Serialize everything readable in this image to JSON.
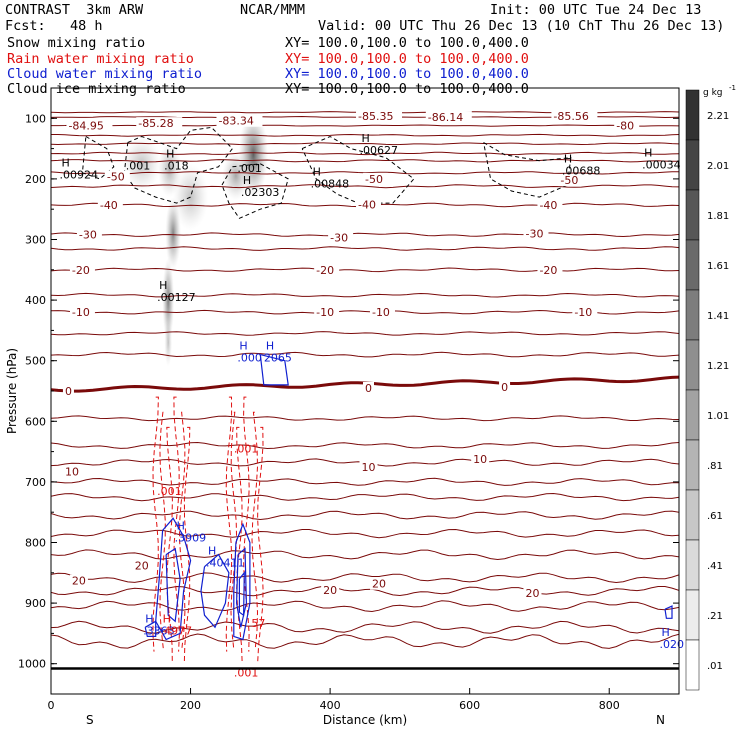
{
  "header": {
    "model": "CONTRAST  3km ARW",
    "forecast": "Fcst:   48 h",
    "center": "NCAR/MMM",
    "init": "Init: 00 UTC Tue 24 Dec 13",
    "valid": "Valid: 00 UTC Thu 26 Dec 13 (10 ChT Thu 26 Dec 13)",
    "fields": [
      {
        "name": "Snow mixing ratio",
        "xy": "XY= 100.0,100.0 to 100.0,400.0",
        "color": "#000000"
      },
      {
        "name": "Rain water mixing ratio",
        "xy": "XY= 100.0,100.0 to 100.0,400.0",
        "color": "#ee1111"
      },
      {
        "name": "Cloud water mixing ratio",
        "xy": "XY= 100.0,100.0 to 100.0,400.0",
        "color": "#1111cc"
      },
      {
        "name": "Cloud ice mixing ratio",
        "xy": "XY= 100.0,100.0 to 100.0,400.0",
        "color": "#000000"
      }
    ]
  },
  "colors": {
    "temp": "#7a0a0a",
    "rain": "#e01010",
    "cloud": "#1020d0",
    "ice": "#000000"
  },
  "chart_data": {
    "type": "cross-section",
    "xlabel": "Distance (km)",
    "ylabel": "Pressure (hPa)",
    "xlim": [
      0,
      900
    ],
    "ylim": [
      1050,
      50
    ],
    "xticks": [
      0,
      200,
      400,
      600,
      800
    ],
    "yticks": [
      100,
      200,
      300,
      400,
      500,
      600,
      700,
      800,
      900,
      1000
    ],
    "end_left": "S",
    "end_right": "N",
    "colorbar": {
      "unit": "g kg",
      "unit_exp": "-1",
      "labels": [
        "2.21",
        "2.01",
        "1.81",
        "1.61",
        "1.41",
        "1.21",
        "1.01",
        ".81",
        ".61",
        ".41",
        ".21",
        ".01"
      ]
    },
    "temp_labels": [
      {
        "x": 25,
        "p": 112,
        "t": "-84.95"
      },
      {
        "x": 125,
        "p": 108,
        "t": "-85.28"
      },
      {
        "x": 240,
        "p": 104,
        "t": "-83.34"
      },
      {
        "x": 440,
        "p": 96,
        "t": "-85.35"
      },
      {
        "x": 540,
        "p": 98,
        "t": "-86.14"
      },
      {
        "x": 720,
        "p": 96,
        "t": "-85.56"
      },
      {
        "x": 810,
        "p": 112,
        "t": "-80"
      },
      {
        "x": 80,
        "p": 196,
        "t": "-50"
      },
      {
        "x": 450,
        "p": 200,
        "t": "-50"
      },
      {
        "x": 730,
        "p": 202,
        "t": "-50"
      },
      {
        "x": 70,
        "p": 243,
        "t": "-40"
      },
      {
        "x": 440,
        "p": 242,
        "t": "-40"
      },
      {
        "x": 700,
        "p": 243,
        "t": "-40"
      },
      {
        "x": 40,
        "p": 292,
        "t": "-30"
      },
      {
        "x": 400,
        "p": 297,
        "t": "-30"
      },
      {
        "x": 680,
        "p": 290,
        "t": "-30"
      },
      {
        "x": 30,
        "p": 350,
        "t": "-20"
      },
      {
        "x": 380,
        "p": 350,
        "t": "-20"
      },
      {
        "x": 700,
        "p": 350,
        "t": "-20"
      },
      {
        "x": 30,
        "p": 420,
        "t": "-10"
      },
      {
        "x": 380,
        "p": 420,
        "t": "-10"
      },
      {
        "x": 460,
        "p": 420,
        "t": "-10"
      },
      {
        "x": 750,
        "p": 420,
        "t": "-10"
      },
      {
        "x": 20,
        "p": 550,
        "t": "0"
      },
      {
        "x": 450,
        "p": 545,
        "t": "0"
      },
      {
        "x": 645,
        "p": 543,
        "t": "0"
      },
      {
        "x": 20,
        "p": 683,
        "t": "10"
      },
      {
        "x": 445,
        "p": 675,
        "t": "10"
      },
      {
        "x": 605,
        "p": 662,
        "t": "10"
      },
      {
        "x": 30,
        "p": 863,
        "t": "20"
      },
      {
        "x": 120,
        "p": 838,
        "t": "20"
      },
      {
        "x": 390,
        "p": 878,
        "t": "20"
      },
      {
        "x": 460,
        "p": 868,
        "t": "20"
      },
      {
        "x": 680,
        "p": 883,
        "t": "20"
      }
    ],
    "extrema": [
      {
        "x": 15,
        "p": 183,
        "h": "H",
        "v": ".00924",
        "c": "ice"
      },
      {
        "x": 110,
        "p": 168,
        "h": "",
        "v": ".001",
        "c": "ice"
      },
      {
        "x": 165,
        "p": 168,
        "h": "H",
        "v": ".018",
        "c": "ice"
      },
      {
        "x": 270,
        "p": 172,
        "h": "",
        "v": ".001",
        "c": "ice"
      },
      {
        "x": 275,
        "p": 212,
        "h": "H",
        "v": ".02303",
        "c": "ice"
      },
      {
        "x": 375,
        "p": 198,
        "h": "H",
        "v": ".00848",
        "c": "ice"
      },
      {
        "x": 445,
        "p": 142,
        "h": "H",
        "v": ".00627",
        "c": "ice"
      },
      {
        "x": 735,
        "p": 176,
        "h": "H",
        "v": ".00688",
        "c": "ice"
      },
      {
        "x": 850,
        "p": 166,
        "h": "H",
        "v": ".00034",
        "c": "ice"
      },
      {
        "x": 155,
        "p": 385,
        "h": "H",
        "v": ".00127",
        "c": "ice"
      },
      {
        "x": 270,
        "p": 485,
        "h": "H",
        "v": ".000",
        "c": "cloud"
      },
      {
        "x": 308,
        "p": 485,
        "h": "H",
        "v": "2065",
        "c": "cloud"
      },
      {
        "x": 265,
        "p": 635,
        "h": "",
        "v": ".001",
        "c": "rain"
      },
      {
        "x": 155,
        "p": 705,
        "h": "",
        "v": ".001",
        "c": "rain"
      },
      {
        "x": 180,
        "p": 782,
        "h": "H",
        "v": ".3909",
        "c": "cloud"
      },
      {
        "x": 225,
        "p": 823,
        "h": "H",
        "v": ".40411",
        "c": "cloud"
      },
      {
        "x": 135,
        "p": 935,
        "h": "H",
        "v": ".3363",
        "c": "cloud"
      },
      {
        "x": 160,
        "p": 935,
        "h": "H",
        "v": ".4977",
        "c": "rain"
      },
      {
        "x": 290,
        "p": 923,
        "h": "",
        "v": "57",
        "c": "rain"
      },
      {
        "x": 265,
        "p": 1005,
        "h": "",
        "v": ".001",
        "c": "rain"
      },
      {
        "x": 875,
        "p": 958,
        "h": "H",
        "v": ".020",
        "c": "cloud"
      }
    ]
  }
}
